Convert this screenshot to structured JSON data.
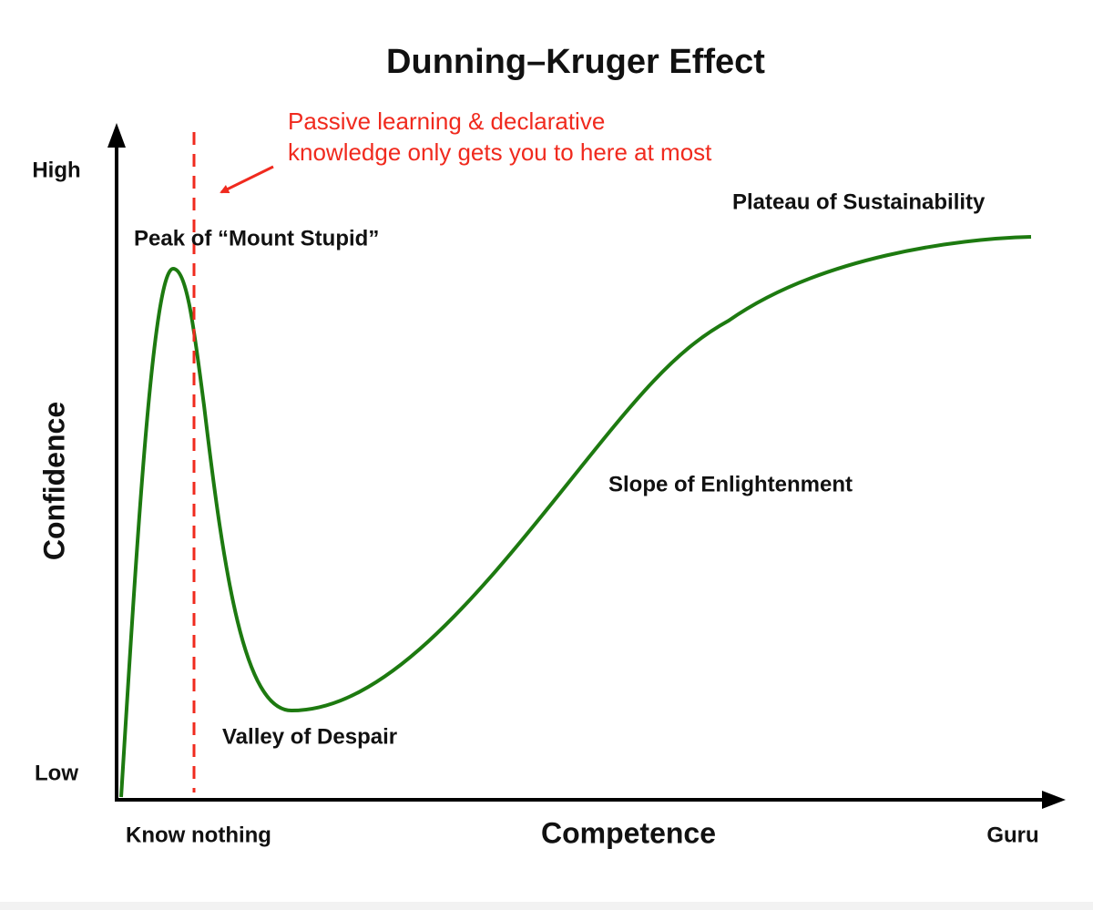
{
  "title": "Dunning–Kruger Effect",
  "y_axis": {
    "label": "Confidence",
    "high": "High",
    "low": "Low"
  },
  "x_axis": {
    "label": "Competence",
    "start": "Know nothing",
    "end": "Guru"
  },
  "annotation": {
    "lines": [
      "Passive learning & declarative",
      "knowledge only gets you to here at most"
    ]
  },
  "stages": [
    "Peak of “Mount Stupid”",
    "Valley of Despair",
    "Slope of Enlightenment",
    "Plateau of Sustainability"
  ]
}
